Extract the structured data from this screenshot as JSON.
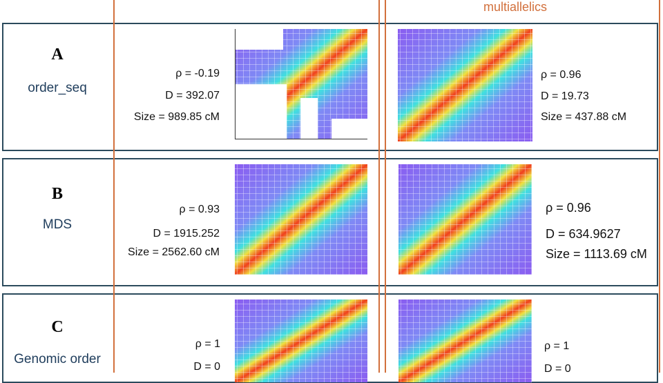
{
  "header": {
    "column_title": "multiallelics"
  },
  "rows": [
    {
      "letter": "A",
      "method": "order_seq",
      "left": [
        "ρ = -0.19",
        "D = 392.07",
        "Size = 989.85 cM"
      ],
      "right": [
        "ρ = 0.96",
        "D = 19.73",
        "Size = 437.88 cM"
      ]
    },
    {
      "letter": "B",
      "method": "MDS",
      "left": [
        "ρ = 0.93",
        "D = 1915.252",
        "Size = 2562.60 cM"
      ],
      "right": [
        "ρ = 0.96",
        "D = 634.9627",
        "Size = 1113.69 cM"
      ]
    },
    {
      "letter": "C",
      "method": "Genomic order",
      "left": [
        "ρ = 1",
        "D = 0"
      ],
      "right": [
        "ρ = 1",
        "D = 0"
      ]
    }
  ]
}
